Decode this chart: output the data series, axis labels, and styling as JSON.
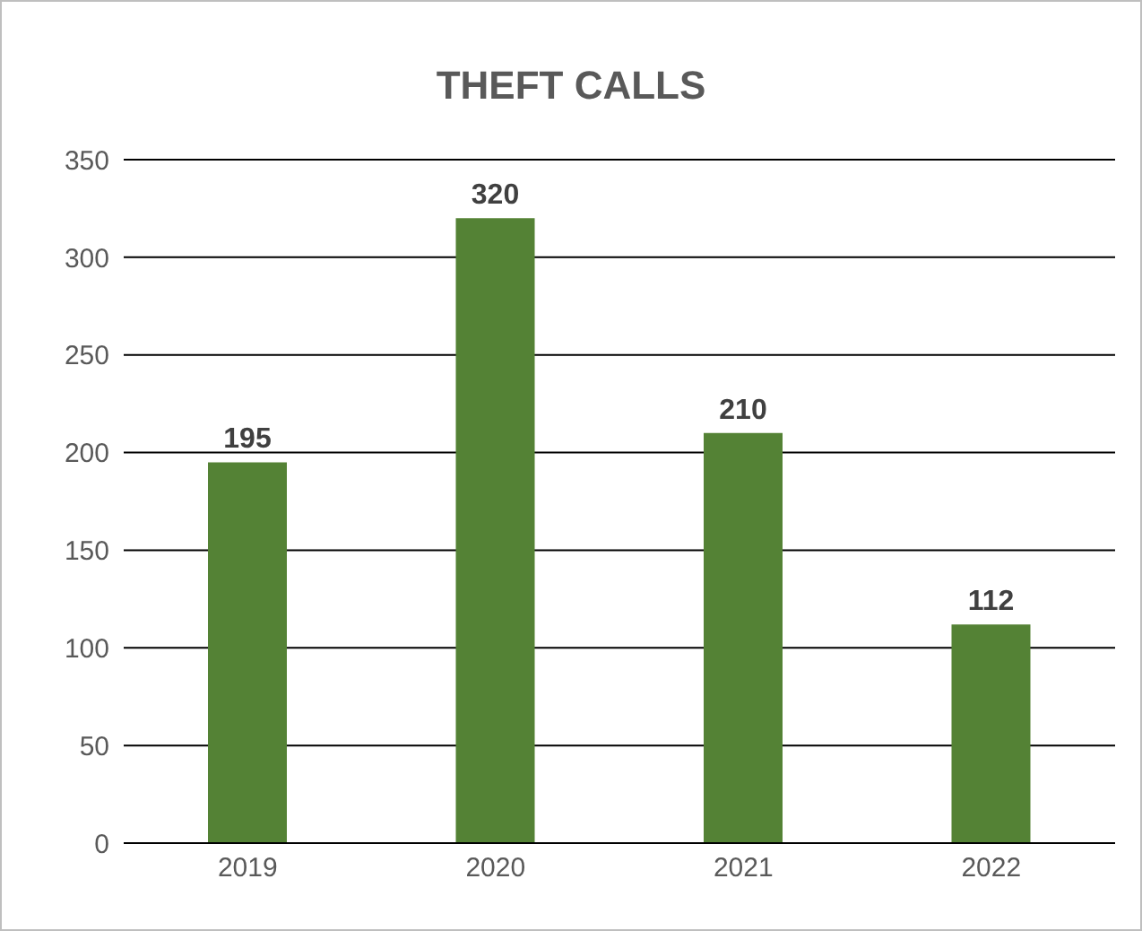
{
  "chart_data": {
    "type": "bar",
    "title": "THEFT CALLS",
    "categories": [
      "2019",
      "2020",
      "2021",
      "2022"
    ],
    "values": [
      195,
      320,
      210,
      112
    ],
    "color": "#548235",
    "ylim": [
      0,
      350
    ],
    "yticks": [
      0,
      50,
      100,
      150,
      200,
      250,
      300,
      350
    ],
    "grid": "y",
    "data_labels": true
  }
}
